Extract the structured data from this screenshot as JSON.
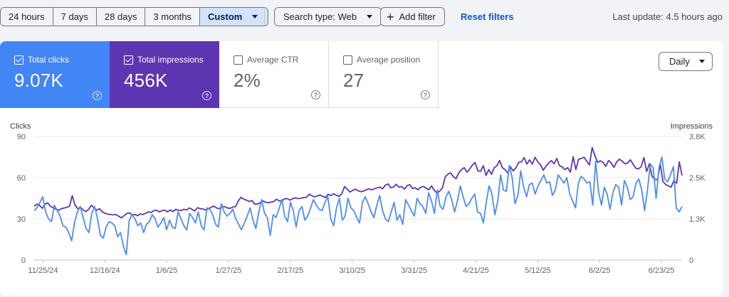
{
  "toolbar": {
    "ranges": [
      "24 hours",
      "7 days",
      "28 days",
      "3 months",
      "Custom"
    ],
    "search_type": "Search type: Web",
    "add_filter": "Add filter",
    "reset": "Reset filters",
    "last_update": "Last update: 4.5 hours ago"
  },
  "metrics": {
    "clicks": {
      "label": "Total clicks",
      "value": "9.07K"
    },
    "impressions": {
      "label": "Total impressions",
      "value": "456K"
    },
    "ctr": {
      "label": "Average CTR",
      "value": "2%"
    },
    "position": {
      "label": "Average position",
      "value": "27"
    }
  },
  "granularity": "Daily",
  "chart_data": {
    "type": "line",
    "ylabel": "Clicks",
    "y2label": "Impressions",
    "ylim": [
      0,
      90
    ],
    "y2lim": [
      0,
      3800
    ],
    "yticks": [
      "0",
      "30",
      "60",
      "90"
    ],
    "y2ticks": [
      "0",
      "1.3K",
      "2.5K",
      "3.8K"
    ],
    "xticks": [
      "11/25/24",
      "12/16/24",
      "1/6/25",
      "1/27/25",
      "2/17/25",
      "3/10/25",
      "3/31/25",
      "4/21/25",
      "5/12/25",
      "6/2/25",
      "6/23/25"
    ],
    "x_start": "11/22/24",
    "x_end": "6/30/25",
    "colors": {
      "clicks": "#4e8cf0",
      "impressions": "#5e35b1"
    },
    "series": [
      {
        "name": "Clicks",
        "axis": "left",
        "values": [
          36,
          38,
          42,
          46,
          35,
          30,
          28,
          40,
          36,
          32,
          25,
          24,
          20,
          14,
          27,
          35,
          39,
          31,
          23,
          20,
          34,
          39,
          30,
          18,
          16,
          24,
          28,
          27,
          25,
          17,
          20,
          10,
          4,
          29,
          33,
          30,
          25,
          27,
          20,
          26,
          28,
          33,
          30,
          24,
          27,
          31,
          22,
          29,
          24,
          23,
          35,
          30,
          25,
          22,
          34,
          31,
          27,
          35,
          25,
          22,
          38,
          37,
          33,
          26,
          24,
          41,
          35,
          32,
          34,
          37,
          30,
          26,
          22,
          27,
          32,
          38,
          29,
          23,
          35,
          44,
          34,
          31,
          18,
          33,
          31,
          37,
          44,
          32,
          28,
          42,
          36,
          24,
          36,
          39,
          29,
          32,
          38,
          44,
          40,
          37,
          36,
          42,
          46,
          30,
          25,
          38,
          45,
          29,
          32,
          45,
          38,
          36,
          31,
          27,
          42,
          46,
          41,
          35,
          31,
          40,
          47,
          36,
          30,
          28,
          35,
          42,
          29,
          33,
          26,
          44,
          40,
          36,
          32,
          45,
          41,
          39,
          34,
          49,
          43,
          34,
          51,
          39,
          37,
          46,
          50,
          44,
          35,
          43,
          54,
          46,
          39,
          41,
          45,
          48,
          35,
          34,
          27,
          42,
          54,
          48,
          33,
          43,
          62,
          51,
          50,
          69,
          60,
          41,
          47,
          65,
          53,
          46,
          55,
          56,
          48,
          54,
          58,
          62,
          56,
          57,
          47,
          51,
          62,
          59,
          56,
          60,
          48,
          43,
          38,
          56,
          61,
          59,
          56,
          57,
          40,
          72,
          50,
          40,
          53,
          48,
          37,
          49,
          55,
          53,
          40,
          58,
          53,
          44,
          46,
          56,
          59,
          51,
          36,
          51,
          70,
          67,
          45,
          67,
          75,
          59,
          57,
          62,
          68,
          38,
          35,
          39
        ]
      },
      {
        "name": "Impressions",
        "axis": "right",
        "values": [
          1650,
          1720,
          1680,
          1590,
          1720,
          1760,
          1650,
          1610,
          1560,
          1530,
          1580,
          1600,
          1620,
          1660,
          1980,
          1690,
          1580,
          1620,
          1540,
          1490,
          1560,
          1680,
          1610,
          1530,
          1580,
          1480,
          1440,
          1410,
          1400,
          1390,
          1400,
          1350,
          1300,
          1360,
          1430,
          1450,
          1390,
          1400,
          1360,
          1420,
          1400,
          1440,
          1480,
          1460,
          1520,
          1530,
          1480,
          1520,
          1530,
          1480,
          1540,
          1490,
          1560,
          1530,
          1520,
          1560,
          1540,
          1600,
          1560,
          1510,
          1610,
          1580,
          1570,
          1540,
          1580,
          1620,
          1660,
          1600,
          1580,
          1640,
          1640,
          1600,
          1590,
          1630,
          1640,
          1820,
          1930,
          1870,
          1840,
          1800,
          1830,
          1720,
          1720,
          1760,
          1820,
          1780,
          1760,
          1780,
          1800,
          1870,
          1820,
          1820,
          1880,
          1890,
          1840,
          1890,
          1910,
          1890,
          1900,
          1920,
          1930,
          2020,
          1980,
          1940,
          1970,
          2000,
          1960,
          1920,
          2020,
          1980,
          2040,
          1990,
          1960,
          2040,
          2260,
          2180,
          2090,
          2140,
          2180,
          2130,
          2100,
          2120,
          2160,
          2190,
          2160,
          2190,
          2220,
          2240,
          2190,
          2300,
          2340,
          2220,
          2240,
          2330,
          2240,
          2260,
          2180,
          2280,
          2320,
          2200,
          2220,
          2160,
          2240,
          2260,
          2210,
          2160,
          2280,
          2140,
          2060,
          2120,
          2220,
          2560,
          2640,
          2680,
          2560,
          2500,
          2680,
          2780,
          2840,
          2700,
          2800,
          2920,
          3000,
          2740,
          2730,
          2900,
          2600,
          2780,
          2640,
          2840,
          2900,
          3060,
          2840,
          2780,
          2680,
          2860,
          2740,
          2840,
          3000,
          3020,
          3150,
          2950,
          3080,
          2950,
          3160,
          3020,
          2930,
          2760,
          2880,
          2980,
          3060,
          2960,
          3120,
          2900,
          2860,
          2780,
          2840,
          2700,
          3180,
          2780,
          3100,
          3120,
          3160,
          3040,
          2920,
          3460,
          3210,
          3000,
          3050,
          3000,
          2880,
          3060,
          2980,
          2850,
          3020,
          3100,
          3040,
          2960,
          2980,
          3080,
          2950,
          2820,
          2800,
          2870,
          3150,
          2720,
          2960,
          2580,
          2480,
          2470,
          2960,
          2420,
          2320,
          2280,
          2240,
          2440,
          2360,
          3020,
          2600
        ]
      }
    ]
  }
}
